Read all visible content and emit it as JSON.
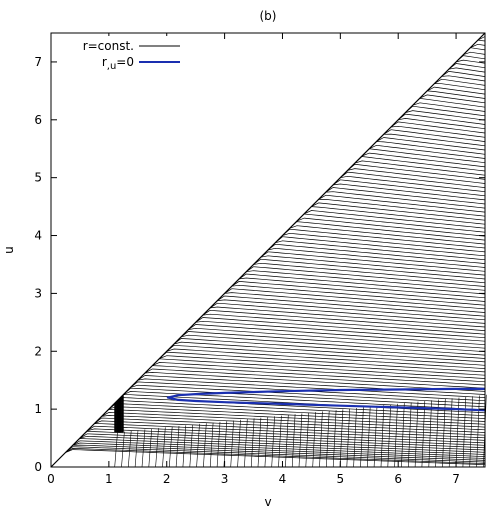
{
  "chart_data": {
    "type": "line",
    "title": "(b)",
    "xlabel": "v",
    "ylabel": "u",
    "xlim": [
      0,
      7.5
    ],
    "ylim": [
      0,
      7.5
    ],
    "x_ticks": [
      "0",
      "1",
      "2",
      "3",
      "4",
      "5",
      "6",
      "7"
    ],
    "y_ticks": [
      "0",
      "1",
      "2",
      "3",
      "4",
      "5",
      "6",
      "7"
    ],
    "grid": false,
    "legend_position": "top-left",
    "series": [
      {
        "name": "r=const.",
        "color": "#000000",
        "style": "family of contour lines (spacetime diagram)",
        "boundary_line": {
          "x": [
            0,
            7.5
          ],
          "y": [
            0,
            7.5
          ]
        },
        "shock_region": {
          "v_range": [
            1.1,
            1.25
          ],
          "u_range": [
            0.6,
            1.25
          ]
        }
      },
      {
        "name": "r,u=0",
        "color": "#1a2fb0",
        "style": "closed curve",
        "x": [
          7.5,
          7.0,
          6.0,
          5.0,
          4.0,
          3.0,
          2.5,
          2.2,
          2.02,
          2.2,
          2.5,
          3.0,
          4.0,
          5.0,
          6.0,
          7.0,
          7.5
        ],
        "y": [
          1.35,
          1.35,
          1.34,
          1.33,
          1.31,
          1.28,
          1.26,
          1.24,
          1.2,
          1.16,
          1.14,
          1.12,
          1.09,
          1.06,
          1.03,
          1.0,
          0.98
        ]
      }
    ]
  }
}
